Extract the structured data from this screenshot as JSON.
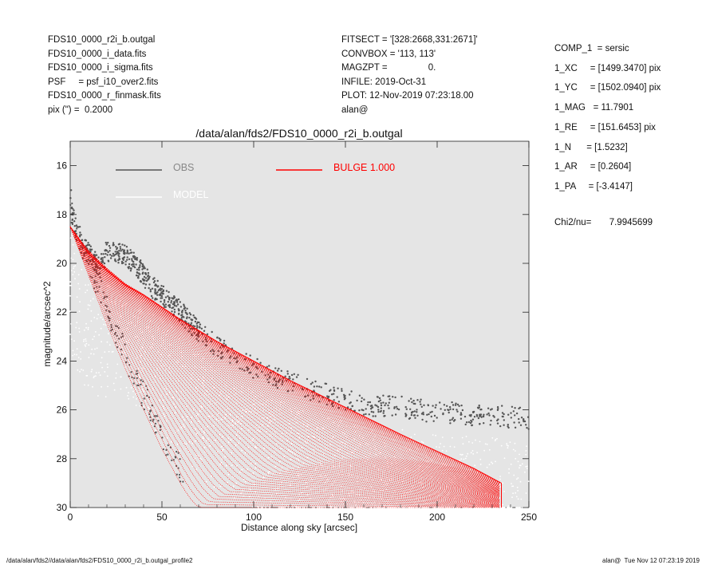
{
  "header_left": [
    "FDS10_0000_r2i_b.outgal",
    "FDS10_0000_i_data.fits",
    "FDS10_0000_i_sigma.fits",
    "PSF     = psf_i10_over2.fits",
    "FDS10_0000_r_finmask.fits",
    "pix (\") =  0.2000"
  ],
  "header_mid": [
    "FITSECT = '[328:2668,331:2671]'",
    "CONVBOX = '113, 113'",
    "MAGZPT =                0.",
    "INFILE: 2019-Oct-31",
    "PLOT: 12-Nov-2019 07:23:18.00",
    "alan@"
  ],
  "header_right": [
    "COMP_1  = sersic",
    "1_XC     = [1499.3470] pix",
    "1_YC     = [1502.0940] pix",
    "1_MAG   = 11.7901",
    "1_RE     = [151.6453] pix",
    "1_N      = [1.5232]",
    "1_AR     = [0.2604]",
    "1_PA     = [-3.4147]"
  ],
  "chi2": "Chi2/nu=       7.9945699",
  "footer_left": "/data/alan/fds2//data/alan/fds2/FDS10_0000_r2i_b.outgal_profile2",
  "footer_right": "alan@  Tue Nov 12 07:23:19 2019",
  "colors": {
    "obs": "#555555",
    "model": "#ffffff",
    "bulge": "#ff0000",
    "plot_bg": "#e5e5e5",
    "bulge_text": "#ff0000",
    "obs_text": "#888888",
    "model_text": "#ffffff"
  },
  "chart_data": {
    "type": "scatter",
    "title": "/data/alan/fds2/FDS10_0000_r2i_b.outgal",
    "xlabel": "Distance along sky [arcsec]",
    "ylabel": "magnitude/arcsec^2",
    "xlim": [
      0,
      250
    ],
    "ylim": [
      30,
      15
    ],
    "y_inverted": true,
    "x_ticks": [
      "0",
      "50",
      "100",
      "150",
      "200",
      "250"
    ],
    "y_ticks": [
      "16",
      "18",
      "20",
      "22",
      "24",
      "26",
      "28",
      "30"
    ],
    "grid": false,
    "legend": {
      "placement": "top",
      "entries": [
        {
          "label": "OBS",
          "color": "#555555"
        },
        {
          "label": "MODEL",
          "color": "#ffffff"
        },
        {
          "label": "BULGE  1.000",
          "color": "#ff0000"
        }
      ]
    },
    "series": [
      {
        "name": "OBS",
        "kind": "points",
        "x": [
          0.5,
          1,
          2,
          3,
          5,
          8,
          12,
          16,
          20,
          25,
          30,
          35,
          40,
          45,
          50,
          55,
          60,
          70,
          80,
          100,
          120,
          140,
          160,
          180,
          200,
          220,
          240,
          248
        ],
        "y": [
          17.3,
          17.8,
          18.2,
          18.5,
          18.9,
          19.3,
          19.7,
          20.0,
          19.4,
          19.5,
          19.6,
          19.9,
          20.4,
          20.9,
          21.2,
          21.5,
          21.9,
          22.7,
          23.3,
          24.2,
          24.8,
          25.3,
          25.7,
          25.8,
          26.0,
          26.1,
          26.2,
          26.3
        ]
      },
      {
        "name": "BULGE  1.000",
        "kind": "upper-envelope",
        "x": [
          0,
          10,
          20,
          30,
          40,
          50,
          60,
          80,
          100,
          120,
          150,
          180,
          200,
          220,
          235
        ],
        "y": [
          18.5,
          19.6,
          20.3,
          20.9,
          21.3,
          21.8,
          22.3,
          23.2,
          24.0,
          24.8,
          25.9,
          27.0,
          27.7,
          28.4,
          29.0
        ]
      },
      {
        "name": "BULGE  1.000",
        "kind": "lower-envelope",
        "x": [
          0,
          10,
          20,
          30,
          40,
          50,
          55,
          60,
          65,
          70
        ],
        "y": [
          18.5,
          20.5,
          22.5,
          24.3,
          26.0,
          27.6,
          28.3,
          29.0,
          29.6,
          30.0
        ]
      }
    ]
  }
}
